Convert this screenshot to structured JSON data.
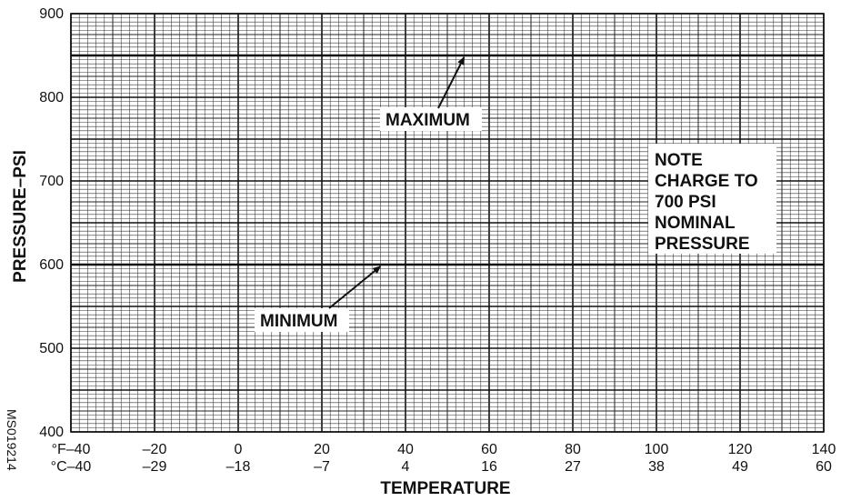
{
  "chart_data": {
    "type": "line",
    "title": "",
    "xlabel": "TEMPERATURE",
    "ylabel": "PRESSURE–PSI",
    "xlim": [
      -40,
      140
    ],
    "ylim": [
      400,
      900
    ],
    "grid": true,
    "x_ticks_f": [
      -40,
      -20,
      0,
      20,
      40,
      60,
      80,
      100,
      120,
      140
    ],
    "x_tick_labels_f": [
      "°F–40",
      "–20",
      "0",
      "20",
      "40",
      "60",
      "80",
      "100",
      "120",
      "140"
    ],
    "x_tick_labels_c": [
      "°C–40",
      "–29",
      "–18",
      "–7",
      "4",
      "16",
      "27",
      "38",
      "49",
      "60"
    ],
    "y_ticks": [
      400,
      500,
      600,
      700,
      800,
      900
    ],
    "y_tick_labels": [
      "400",
      "500",
      "600",
      "700",
      "800",
      "900"
    ],
    "series": [
      {
        "name": "MAXIMUM",
        "x": [
          -40,
          140
        ],
        "y": [
          850,
          850
        ]
      },
      {
        "name": "MINIMUM",
        "x": [
          -40,
          140
        ],
        "y": [
          600,
          600
        ]
      }
    ],
    "annotations": [
      {
        "label": "MAXIMUM",
        "target": [
          54,
          850
        ]
      },
      {
        "label": "MINIMUM",
        "target": [
          34,
          600
        ]
      }
    ],
    "note_lines": [
      "NOTE",
      "CHARGE TO",
      "700 PSI",
      "NOMINAL",
      "PRESSURE"
    ],
    "figure_code": "MS019214"
  }
}
